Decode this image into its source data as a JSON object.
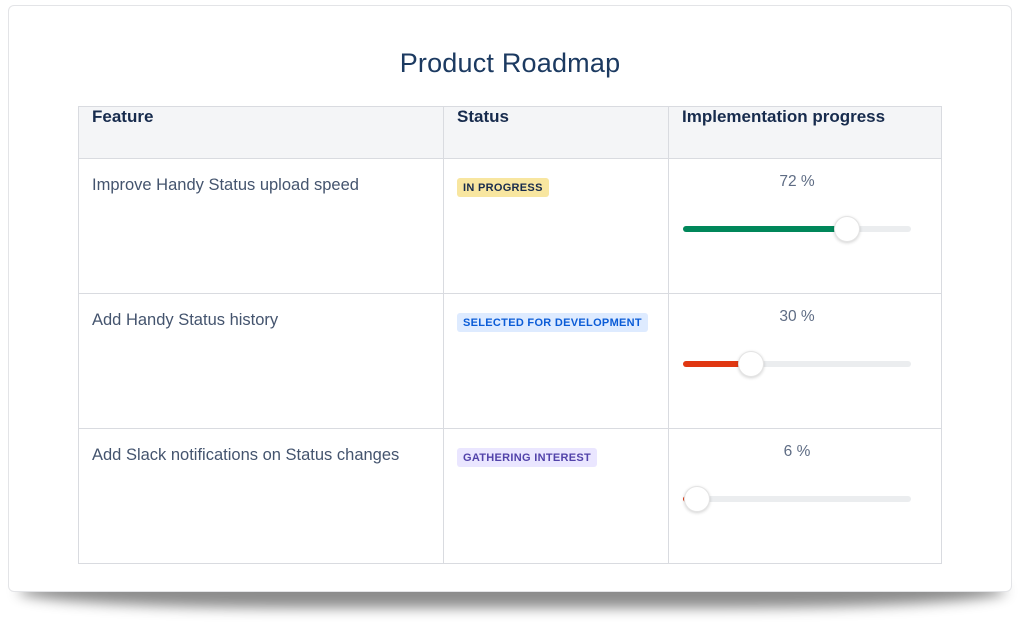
{
  "page": {
    "title": "Product Roadmap"
  },
  "colors": {
    "title_text": "#1c3a61",
    "header_bg": "#f4f5f7",
    "header_text": "#172b4d",
    "feature_text": "#44546e",
    "percent_text": "#5e6c84",
    "table_border": "#d9dbe0",
    "slider_track": "#ebedef",
    "green_fill": "#00875a",
    "red_fill": "#e03711",
    "badge_yellow_bg": "#f8e6a0",
    "badge_blue_bg": "#deebff",
    "badge_purple_bg": "#eae6ff"
  },
  "table": {
    "columns": [
      "Feature",
      "Status",
      "Implementation progress"
    ],
    "rows": [
      {
        "feature": "Improve Handy Status upload speed",
        "status": {
          "label": "IN PROGRESS",
          "bg": "#f8e6a0",
          "text_color": "#172b4d",
          "style": "background:#f8e6a0;color:#172b4d"
        },
        "progress": {
          "percent": 72,
          "label": "72 %",
          "fill_color": "#00875a",
          "fill_style": "width:72%;background:#00875a",
          "thumb_style": "left:72%"
        }
      },
      {
        "feature": "Add Handy Status history",
        "status": {
          "label": "SELECTED FOR DEVELOPMENT",
          "bg": "#deebff",
          "text_color": "#0b5cd7",
          "style": "background:#deebff;color:#0b5cd7"
        },
        "progress": {
          "percent": 30,
          "label": "30 %",
          "fill_color": "#e03711",
          "fill_style": "width:30%;background:#e03711",
          "thumb_style": "left:30%"
        }
      },
      {
        "feature": "Add Slack notifications on Status changes",
        "status": {
          "label": "GATHERING INTEREST",
          "bg": "#eae6ff",
          "text_color": "#5243aa",
          "style": "background:#eae6ff;color:#5243aa"
        },
        "progress": {
          "percent": 6,
          "label": "6 %",
          "fill_color": "#e03711",
          "fill_style": "width:6%;background:#e03711",
          "thumb_style": "left:6%"
        }
      }
    ]
  }
}
